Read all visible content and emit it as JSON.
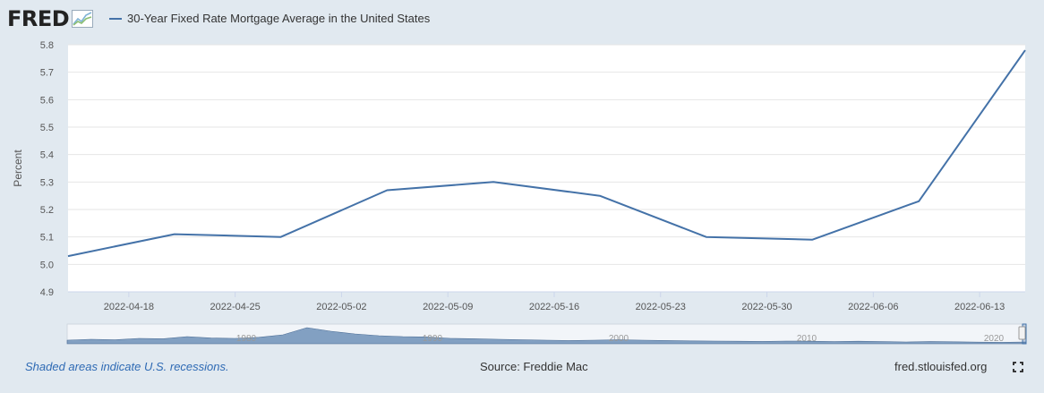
{
  "header": {
    "logo_text": "FRED",
    "logo_icon": "line-graph-icon",
    "legend_label": "30-Year Fixed Rate Mortgage Average in the United States",
    "legend_color": "#4472a8"
  },
  "footer": {
    "recession_note": "Shaded areas indicate U.S. recessions.",
    "source": "Source: Freddie Mac",
    "site": "fred.stlouisfed.org",
    "fullscreen_icon": "expand-icon"
  },
  "navigator": {
    "decade_labels": [
      "1980",
      "1990",
      "2000",
      "2010",
      "2020"
    ]
  },
  "chart_data": {
    "type": "line",
    "title": "",
    "xlabel": "",
    "ylabel": "Percent",
    "ylim": [
      4.9,
      5.8
    ],
    "yticks": [
      "4.9",
      "5.0",
      "5.1",
      "5.2",
      "5.3",
      "5.4",
      "5.5",
      "5.6",
      "5.7",
      "5.8"
    ],
    "xticks": [
      "2022-04-18",
      "2022-04-25",
      "2022-05-02",
      "2022-05-09",
      "2022-05-16",
      "2022-05-23",
      "2022-05-30",
      "2022-06-06",
      "2022-06-13"
    ],
    "grid": true,
    "series": [
      {
        "name": "30-Year Fixed Rate Mortgage Average in the United States",
        "color": "#4472a8",
        "x": [
          "2022-04-14",
          "2022-04-21",
          "2022-04-28",
          "2022-05-05",
          "2022-05-12",
          "2022-05-19",
          "2022-05-26",
          "2022-06-02",
          "2022-06-09",
          "2022-06-16"
        ],
        "values": [
          5.03,
          5.11,
          5.1,
          5.27,
          5.3,
          5.25,
          5.1,
          5.09,
          5.23,
          5.78
        ]
      }
    ]
  }
}
